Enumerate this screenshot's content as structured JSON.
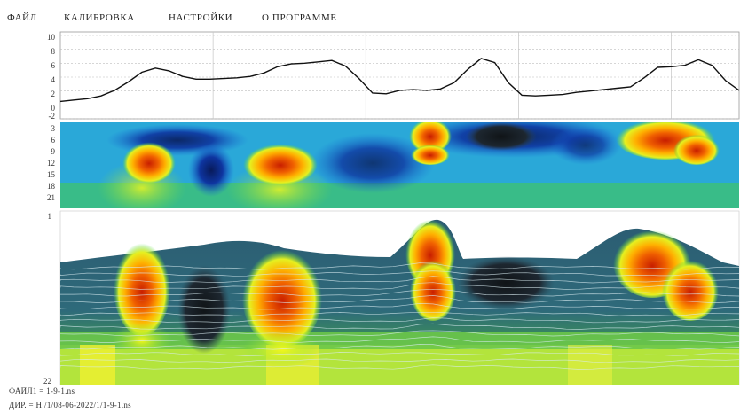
{
  "menu": {
    "items": [
      {
        "label": "ФАЙЛ",
        "name": "menu-file"
      },
      {
        "label": "КАЛИБРОВКА",
        "name": "menu-calibration"
      },
      {
        "label": "НАСТРОЙКИ",
        "name": "menu-settings"
      },
      {
        "label": "О ПРОГРАММЕ",
        "name": "menu-about"
      }
    ]
  },
  "chart_data": [
    {
      "type": "line",
      "ylim": [
        -2,
        10
      ],
      "y_ticks": [
        "10",
        "8",
        "6",
        "4",
        "2",
        "0",
        "-2"
      ],
      "grid": true,
      "x": [
        0,
        2,
        4,
        6,
        8,
        10,
        12,
        14,
        16,
        18,
        20,
        22,
        24,
        26,
        28,
        30,
        32,
        34,
        36,
        38,
        40,
        42,
        44,
        46,
        48,
        50,
        52,
        54,
        56,
        58,
        60,
        62,
        64,
        66,
        68,
        70,
        72,
        74,
        76,
        78,
        80,
        82,
        84,
        86,
        88,
        90,
        92,
        94,
        96,
        98,
        100
      ],
      "values": [
        0.5,
        0.7,
        0.9,
        1.3,
        2.1,
        3.3,
        4.7,
        5.3,
        4.9,
        4.1,
        3.7,
        3.7,
        3.8,
        3.9,
        4.1,
        4.6,
        5.5,
        5.9,
        6.0,
        6.2,
        6.4,
        5.6,
        3.8,
        1.7,
        1.6,
        2.1,
        2.2,
        2.1,
        2.3,
        3.2,
        5.1,
        6.7,
        6.1,
        3.2,
        1.4,
        1.3,
        1.4,
        1.5,
        1.8,
        2.0,
        2.2,
        2.4,
        2.6,
        3.9,
        5.4,
        5.5,
        5.7,
        6.5,
        5.7,
        3.5,
        2.1
      ]
    },
    {
      "type": "heatmap",
      "y_ticks": [
        "3",
        "6",
        "9",
        "12",
        "15",
        "18",
        "21"
      ]
    },
    {
      "type": "area",
      "y_ticks": [
        "1",
        "22"
      ]
    }
  ],
  "status": {
    "file_line": "ФАЙЛ1 = 1-9-1.ns",
    "dir_line": "ДИР. = H:/1/08-06-2022/1/1-9-1.ns"
  }
}
